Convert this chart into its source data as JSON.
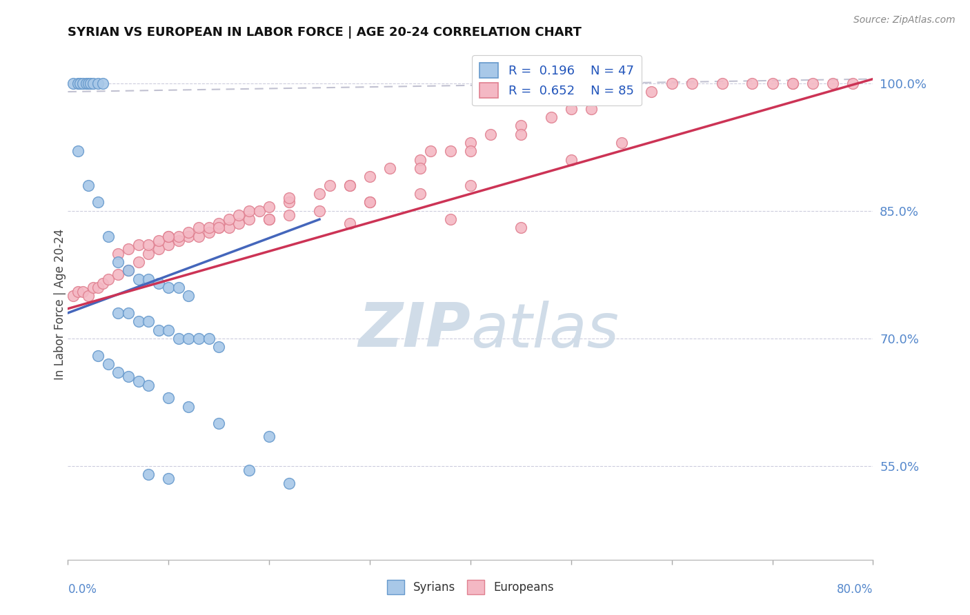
{
  "title": "SYRIAN VS EUROPEAN IN LABOR FORCE | AGE 20-24 CORRELATION CHART",
  "source": "Source: ZipAtlas.com",
  "ylabel": "In Labor Force | Age 20-24",
  "xlim": [
    0.0,
    80.0
  ],
  "ylim": [
    44.0,
    104.0
  ],
  "yticks": [
    55.0,
    70.0,
    85.0,
    100.0
  ],
  "legend_blue": {
    "R": "0.196",
    "N": "47",
    "label": "Syrians"
  },
  "legend_pink": {
    "R": "0.652",
    "N": "85",
    "label": "Europeans"
  },
  "blue_color": "#a8c8e8",
  "pink_color": "#f4b8c4",
  "blue_edge": "#6699cc",
  "pink_edge": "#e08090",
  "line_blue": "#4466bb",
  "line_pink": "#cc3355",
  "line_ref_color": "#bbbbcc",
  "watermark_color": "#d0dce8",
  "blue_scatter_x": [
    0.5,
    1.0,
    1.2,
    1.5,
    1.8,
    2.0,
    2.2,
    2.5,
    3.0,
    3.5,
    1.0,
    2.0,
    3.0,
    4.0,
    5.0,
    6.0,
    7.0,
    8.0,
    9.0,
    10.0,
    11.0,
    12.0,
    5.0,
    6.0,
    7.0,
    8.0,
    9.0,
    10.0,
    11.0,
    12.0,
    13.0,
    14.0,
    15.0,
    3.0,
    4.0,
    5.0,
    6.0,
    7.0,
    8.0,
    10.0,
    12.0,
    15.0,
    20.0,
    8.0,
    10.0,
    18.0,
    22.0
  ],
  "blue_scatter_y": [
    100.0,
    100.0,
    100.0,
    100.0,
    100.0,
    100.0,
    100.0,
    100.0,
    100.0,
    100.0,
    92.0,
    88.0,
    86.0,
    82.0,
    79.0,
    78.0,
    77.0,
    77.0,
    76.5,
    76.0,
    76.0,
    75.0,
    73.0,
    73.0,
    72.0,
    72.0,
    71.0,
    71.0,
    70.0,
    70.0,
    70.0,
    70.0,
    69.0,
    68.0,
    67.0,
    66.0,
    65.5,
    65.0,
    64.5,
    63.0,
    62.0,
    60.0,
    58.5,
    54.0,
    53.5,
    54.5,
    53.0
  ],
  "pink_scatter_x": [
    0.5,
    1.0,
    1.5,
    2.0,
    2.5,
    3.0,
    3.5,
    4.0,
    5.0,
    6.0,
    7.0,
    8.0,
    9.0,
    10.0,
    11.0,
    12.0,
    13.0,
    14.0,
    15.0,
    16.0,
    17.0,
    18.0,
    5.0,
    6.0,
    7.0,
    8.0,
    9.0,
    10.0,
    11.0,
    12.0,
    13.0,
    14.0,
    15.0,
    16.0,
    17.0,
    18.0,
    19.0,
    20.0,
    22.0,
    25.0,
    28.0,
    30.0,
    35.0,
    38.0,
    40.0,
    45.0,
    50.0,
    55.0,
    60.0,
    65.0,
    70.0,
    72.0,
    74.0,
    76.0,
    78.0,
    26.0,
    32.0,
    36.0,
    42.0,
    48.0,
    52.0,
    58.0,
    62.0,
    68.0,
    72.0,
    10.0,
    15.0,
    20.0,
    25.0,
    30.0,
    22.0,
    28.0,
    35.0,
    40.0,
    45.0,
    20.0,
    30.0,
    35.0,
    40.0,
    50.0,
    55.0,
    45.0,
    38.0,
    28.0,
    22.0
  ],
  "pink_scatter_y": [
    75.0,
    75.5,
    75.5,
    75.0,
    76.0,
    76.0,
    76.5,
    77.0,
    77.5,
    78.0,
    79.0,
    80.0,
    80.5,
    81.0,
    81.5,
    82.0,
    82.0,
    82.5,
    83.0,
    83.0,
    83.5,
    84.0,
    80.0,
    80.5,
    81.0,
    81.0,
    81.5,
    82.0,
    82.0,
    82.5,
    83.0,
    83.0,
    83.5,
    84.0,
    84.5,
    85.0,
    85.0,
    85.5,
    86.0,
    87.0,
    88.0,
    89.0,
    91.0,
    92.0,
    93.0,
    95.0,
    97.0,
    98.5,
    100.0,
    100.0,
    100.0,
    100.0,
    100.0,
    100.0,
    100.0,
    88.0,
    90.0,
    92.0,
    94.0,
    96.0,
    97.0,
    99.0,
    100.0,
    100.0,
    100.0,
    82.0,
    83.0,
    84.0,
    85.0,
    86.0,
    86.5,
    88.0,
    90.0,
    92.0,
    94.0,
    84.0,
    86.0,
    87.0,
    88.0,
    91.0,
    93.0,
    83.0,
    84.0,
    83.5,
    84.5
  ],
  "blue_line_x0": 0.0,
  "blue_line_x1": 25.0,
  "blue_line_y0": 73.0,
  "blue_line_y1": 84.0,
  "pink_line_x0": 0.0,
  "pink_line_x1": 80.0,
  "pink_line_y0": 73.5,
  "pink_line_y1": 100.5,
  "ref_line_x0": 0.0,
  "ref_line_x1": 80.0,
  "ref_line_y0": 99.0,
  "ref_line_y1": 100.5
}
